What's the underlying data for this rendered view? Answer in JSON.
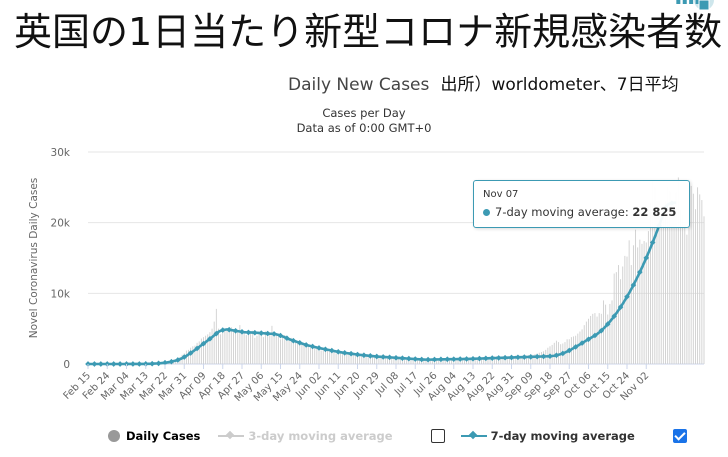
{
  "header": {
    "jp_title": "英国の1日当たり新型コロナ新規感染者数",
    "subtitle": "Daily New Cases",
    "source_note": "出所）worldometer、7日平均"
  },
  "chart_data": {
    "type": "bar",
    "title": "Cases per Day",
    "subtitle": "Data as of 0:00 GMT+0",
    "ylabel": "Novel Coronavirus Daily Cases",
    "ylim": [
      0,
      30000
    ],
    "yticks": [
      0,
      10000,
      20000,
      30000
    ],
    "ytick_labels": [
      "0",
      "10k",
      "20k",
      "30k"
    ],
    "x_tick_labels": [
      "Feb 15",
      "Feb 24",
      "Mar 04",
      "Mar 13",
      "Mar 22",
      "Mar 31",
      "Apr 09",
      "Apr 18",
      "Apr 27",
      "May 06",
      "May 15",
      "May 24",
      "Jun 02",
      "Jun 11",
      "Jun 20",
      "Jun 29",
      "Jul 08",
      "Jul 17",
      "Jul 26",
      "Aug 04",
      "Aug 13",
      "Aug 22",
      "Aug 31",
      "Sep 09",
      "Sep 18",
      "Sep 27",
      "Oct 06",
      "Oct 15",
      "Oct 24",
      "Nov 02"
    ],
    "series": [
      {
        "name": "Daily Cases",
        "type": "bar",
        "color": "#cfcfcf",
        "visible": true,
        "values": [
          0,
          0,
          0,
          0,
          0,
          0,
          0,
          0,
          0,
          0,
          0,
          0,
          1,
          1,
          2,
          2,
          3,
          3,
          4,
          5,
          6,
          6,
          8,
          10,
          15,
          20,
          30,
          40,
          50,
          60,
          80,
          100,
          130,
          160,
          200,
          250,
          300,
          330,
          400,
          500,
          600,
          700,
          800,
          1000,
          1300,
          1500,
          1900,
          2000,
          2300,
          2500,
          2600,
          3000,
          3200,
          3600,
          3800,
          4000,
          4200,
          4500,
          5000,
          6000,
          7800,
          5000,
          4200,
          4600,
          4800,
          5000,
          5100,
          5200,
          4600,
          4400,
          4700,
          5500,
          4300,
          4500,
          4100,
          4800,
          4400,
          4700,
          3700,
          4000,
          4500,
          4000,
          3800,
          4600,
          3900,
          4300,
          5400,
          4600,
          4400,
          4200,
          3500,
          3900,
          4100,
          3800,
          3600,
          3700,
          3200,
          3400,
          3100,
          3100,
          2800,
          2900,
          2500,
          2700,
          2300,
          2400,
          2200,
          2300,
          2100,
          1900,
          1900,
          2300,
          2100,
          1800,
          1600,
          1700,
          1500,
          1600,
          1500,
          1500,
          1600,
          1400,
          1400,
          1300,
          1300,
          1400,
          1200,
          1200,
          1100,
          1200,
          1100,
          1100,
          1000,
          1100,
          1000,
          1000,
          1000,
          1000,
          1000,
          950,
          900,
          900,
          900,
          850,
          800,
          800,
          750,
          750,
          700,
          600,
          550,
          500,
          500,
          500,
          550,
          550,
          550,
          600,
          600,
          650,
          600,
          650,
          650,
          600,
          700,
          700,
          650,
          650,
          650,
          700,
          750,
          750,
          750,
          700,
          750,
          800,
          750,
          800,
          800,
          850,
          850,
          800,
          850,
          850,
          900,
          950,
          950,
          1000,
          1000,
          1000,
          1050,
          1100,
          1100,
          1000,
          1100,
          1100,
          1050,
          1050,
          1100,
          1100,
          1200,
          1100,
          1150,
          1200,
          1150,
          1200,
          1250,
          1300,
          1300,
          1400,
          1500,
          1600,
          1700,
          1800,
          2000,
          2300,
          2500,
          2700,
          3000,
          3300,
          3100,
          2800,
          2900,
          3100,
          3500,
          3500,
          3800,
          3900,
          4000,
          4300,
          4600,
          4900,
          5500,
          6000,
          6400,
          6800,
          7100,
          7200,
          6700,
          7200,
          7100,
          9000,
          8400,
          7000,
          8500,
          9000,
          12800,
          13000,
          14000,
          12000,
          13800,
          15300,
          15200,
          17500,
          14000,
          16800,
          19000,
          16500,
          17600,
          17000,
          17400,
          17200,
          18800,
          22800,
          26000,
          25000,
          23000,
          23000,
          20700,
          22000,
          23000,
          25000,
          24400,
          22200,
          23000,
          24300,
          26400,
          21800,
          21000,
          19800,
          18300,
          22100,
          25200,
          24100,
          21900,
          25000,
          24000,
          23200,
          20900
        ]
      },
      {
        "name": "3-day moving average",
        "type": "line",
        "color": "#d6d6d6",
        "visible": false
      },
      {
        "name": "7-day moving average",
        "type": "line",
        "color": "#3c9ab3",
        "visible": true,
        "values": [
          0,
          0,
          0,
          0,
          0,
          0,
          0,
          0,
          0,
          0,
          0,
          0,
          0,
          1,
          1,
          1,
          2,
          2,
          3,
          3,
          4,
          4,
          5,
          6,
          8,
          10,
          13,
          18,
          25,
          33,
          42,
          55,
          70,
          90,
          115,
          145,
          180,
          220,
          270,
          330,
          400,
          480,
          570,
          680,
          820,
          980,
          1150,
          1350,
          1550,
          1760,
          1980,
          2200,
          2420,
          2650,
          2880,
          3100,
          3330,
          3560,
          3800,
          4050,
          4300,
          4550,
          4700,
          4800,
          4850,
          4900,
          4850,
          4800,
          4750,
          4700,
          4650,
          4600,
          4550,
          4500,
          4480,
          4470,
          4460,
          4450,
          4430,
          4410,
          4390,
          4370,
          4350,
          4330,
          4310,
          4290,
          4280,
          4260,
          4200,
          4120,
          4020,
          3900,
          3780,
          3650,
          3520,
          3400,
          3300,
          3200,
          3100,
          3000,
          2900,
          2800,
          2700,
          2620,
          2550,
          2480,
          2410,
          2340,
          2270,
          2200,
          2140,
          2080,
          2020,
          1960,
          1900,
          1840,
          1780,
          1720,
          1670,
          1620,
          1580,
          1540,
          1500,
          1460,
          1420,
          1380,
          1340,
          1300,
          1270,
          1240,
          1210,
          1180,
          1150,
          1120,
          1090,
          1060,
          1040,
          1020,
          1000,
          980,
          960,
          940,
          920,
          900,
          880,
          860,
          840,
          820,
          800,
          780,
          760,
          740,
          720,
          700,
          680,
          660,
          640,
          630,
          620,
          620,
          620,
          630,
          640,
          650,
          655,
          660,
          665,
          670,
          672,
          675,
          680,
          685,
          690,
          695,
          700,
          705,
          710,
          715,
          720,
          730,
          740,
          750,
          760,
          770,
          780,
          790,
          800,
          810,
          820,
          830,
          840,
          850,
          860,
          870,
          880,
          890,
          900,
          910,
          920,
          930,
          940,
          950,
          960,
          970,
          980,
          990,
          1000,
          1010,
          1020,
          1030,
          1040,
          1050,
          1060,
          1070,
          1080,
          1090,
          1100,
          1130,
          1170,
          1230,
          1300,
          1390,
          1500,
          1620,
          1760,
          1910,
          2070,
          2240,
          2420,
          2600,
          2780,
          2960,
          3140,
          3320,
          3500,
          3680,
          3860,
          4040,
          4240,
          4460,
          4720,
          5010,
          5320,
          5650,
          6000,
          6370,
          6760,
          7170,
          7600,
          8050,
          8520,
          9010,
          9520,
          10050,
          10600,
          11170,
          11760,
          12370,
          13000,
          13650,
          14320,
          15010,
          15720,
          16450,
          17200,
          17970,
          18760,
          19570,
          20400,
          21250,
          22120,
          22550,
          22700,
          22780,
          22825,
          22825
        ]
      }
    ],
    "tooltip": {
      "date": "Nov 07",
      "series": "7-day moving average",
      "label": "7-day moving average:",
      "value": "22 825"
    },
    "legend_placement": "bottom",
    "grid": true
  }
}
